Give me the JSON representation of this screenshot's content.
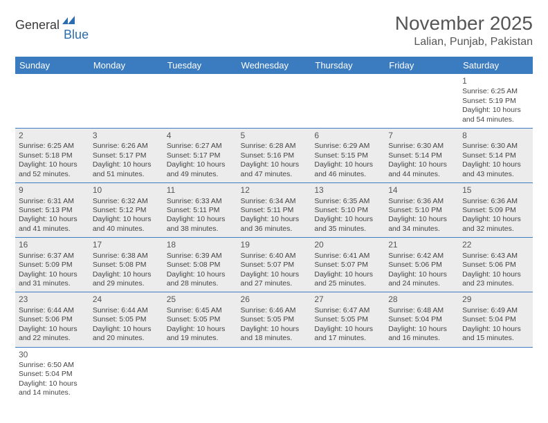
{
  "logo": {
    "text1": "General",
    "text2": "Blue"
  },
  "title": "November 2025",
  "location": "Lalian, Punjab, Pakistan",
  "day_headers": [
    "Sunday",
    "Monday",
    "Tuesday",
    "Wednesday",
    "Thursday",
    "Friday",
    "Saturday"
  ],
  "colors": {
    "header_bg": "#3b7bbf",
    "header_fg": "#ffffff",
    "shaded_bg": "#ececec",
    "rule": "#3b7bbf",
    "text": "#444444"
  },
  "weeks": [
    [
      null,
      null,
      null,
      null,
      null,
      null,
      {
        "n": "1",
        "sunrise": "Sunrise: 6:25 AM",
        "sunset": "Sunset: 5:19 PM",
        "daylight": "Daylight: 10 hours and 54 minutes."
      }
    ],
    [
      {
        "n": "2",
        "sunrise": "Sunrise: 6:25 AM",
        "sunset": "Sunset: 5:18 PM",
        "daylight": "Daylight: 10 hours and 52 minutes."
      },
      {
        "n": "3",
        "sunrise": "Sunrise: 6:26 AM",
        "sunset": "Sunset: 5:17 PM",
        "daylight": "Daylight: 10 hours and 51 minutes."
      },
      {
        "n": "4",
        "sunrise": "Sunrise: 6:27 AM",
        "sunset": "Sunset: 5:17 PM",
        "daylight": "Daylight: 10 hours and 49 minutes."
      },
      {
        "n": "5",
        "sunrise": "Sunrise: 6:28 AM",
        "sunset": "Sunset: 5:16 PM",
        "daylight": "Daylight: 10 hours and 47 minutes."
      },
      {
        "n": "6",
        "sunrise": "Sunrise: 6:29 AM",
        "sunset": "Sunset: 5:15 PM",
        "daylight": "Daylight: 10 hours and 46 minutes."
      },
      {
        "n": "7",
        "sunrise": "Sunrise: 6:30 AM",
        "sunset": "Sunset: 5:14 PM",
        "daylight": "Daylight: 10 hours and 44 minutes."
      },
      {
        "n": "8",
        "sunrise": "Sunrise: 6:30 AM",
        "sunset": "Sunset: 5:14 PM",
        "daylight": "Daylight: 10 hours and 43 minutes."
      }
    ],
    [
      {
        "n": "9",
        "sunrise": "Sunrise: 6:31 AM",
        "sunset": "Sunset: 5:13 PM",
        "daylight": "Daylight: 10 hours and 41 minutes."
      },
      {
        "n": "10",
        "sunrise": "Sunrise: 6:32 AM",
        "sunset": "Sunset: 5:12 PM",
        "daylight": "Daylight: 10 hours and 40 minutes."
      },
      {
        "n": "11",
        "sunrise": "Sunrise: 6:33 AM",
        "sunset": "Sunset: 5:11 PM",
        "daylight": "Daylight: 10 hours and 38 minutes."
      },
      {
        "n": "12",
        "sunrise": "Sunrise: 6:34 AM",
        "sunset": "Sunset: 5:11 PM",
        "daylight": "Daylight: 10 hours and 36 minutes."
      },
      {
        "n": "13",
        "sunrise": "Sunrise: 6:35 AM",
        "sunset": "Sunset: 5:10 PM",
        "daylight": "Daylight: 10 hours and 35 minutes."
      },
      {
        "n": "14",
        "sunrise": "Sunrise: 6:36 AM",
        "sunset": "Sunset: 5:10 PM",
        "daylight": "Daylight: 10 hours and 34 minutes."
      },
      {
        "n": "15",
        "sunrise": "Sunrise: 6:36 AM",
        "sunset": "Sunset: 5:09 PM",
        "daylight": "Daylight: 10 hours and 32 minutes."
      }
    ],
    [
      {
        "n": "16",
        "sunrise": "Sunrise: 6:37 AM",
        "sunset": "Sunset: 5:09 PM",
        "daylight": "Daylight: 10 hours and 31 minutes."
      },
      {
        "n": "17",
        "sunrise": "Sunrise: 6:38 AM",
        "sunset": "Sunset: 5:08 PM",
        "daylight": "Daylight: 10 hours and 29 minutes."
      },
      {
        "n": "18",
        "sunrise": "Sunrise: 6:39 AM",
        "sunset": "Sunset: 5:08 PM",
        "daylight": "Daylight: 10 hours and 28 minutes."
      },
      {
        "n": "19",
        "sunrise": "Sunrise: 6:40 AM",
        "sunset": "Sunset: 5:07 PM",
        "daylight": "Daylight: 10 hours and 27 minutes."
      },
      {
        "n": "20",
        "sunrise": "Sunrise: 6:41 AM",
        "sunset": "Sunset: 5:07 PM",
        "daylight": "Daylight: 10 hours and 25 minutes."
      },
      {
        "n": "21",
        "sunrise": "Sunrise: 6:42 AM",
        "sunset": "Sunset: 5:06 PM",
        "daylight": "Daylight: 10 hours and 24 minutes."
      },
      {
        "n": "22",
        "sunrise": "Sunrise: 6:43 AM",
        "sunset": "Sunset: 5:06 PM",
        "daylight": "Daylight: 10 hours and 23 minutes."
      }
    ],
    [
      {
        "n": "23",
        "sunrise": "Sunrise: 6:44 AM",
        "sunset": "Sunset: 5:06 PM",
        "daylight": "Daylight: 10 hours and 22 minutes."
      },
      {
        "n": "24",
        "sunrise": "Sunrise: 6:44 AM",
        "sunset": "Sunset: 5:05 PM",
        "daylight": "Daylight: 10 hours and 20 minutes."
      },
      {
        "n": "25",
        "sunrise": "Sunrise: 6:45 AM",
        "sunset": "Sunset: 5:05 PM",
        "daylight": "Daylight: 10 hours and 19 minutes."
      },
      {
        "n": "26",
        "sunrise": "Sunrise: 6:46 AM",
        "sunset": "Sunset: 5:05 PM",
        "daylight": "Daylight: 10 hours and 18 minutes."
      },
      {
        "n": "27",
        "sunrise": "Sunrise: 6:47 AM",
        "sunset": "Sunset: 5:05 PM",
        "daylight": "Daylight: 10 hours and 17 minutes."
      },
      {
        "n": "28",
        "sunrise": "Sunrise: 6:48 AM",
        "sunset": "Sunset: 5:04 PM",
        "daylight": "Daylight: 10 hours and 16 minutes."
      },
      {
        "n": "29",
        "sunrise": "Sunrise: 6:49 AM",
        "sunset": "Sunset: 5:04 PM",
        "daylight": "Daylight: 10 hours and 15 minutes."
      }
    ],
    [
      {
        "n": "30",
        "sunrise": "Sunrise: 6:50 AM",
        "sunset": "Sunset: 5:04 PM",
        "daylight": "Daylight: 10 hours and 14 minutes."
      },
      null,
      null,
      null,
      null,
      null,
      null
    ]
  ]
}
